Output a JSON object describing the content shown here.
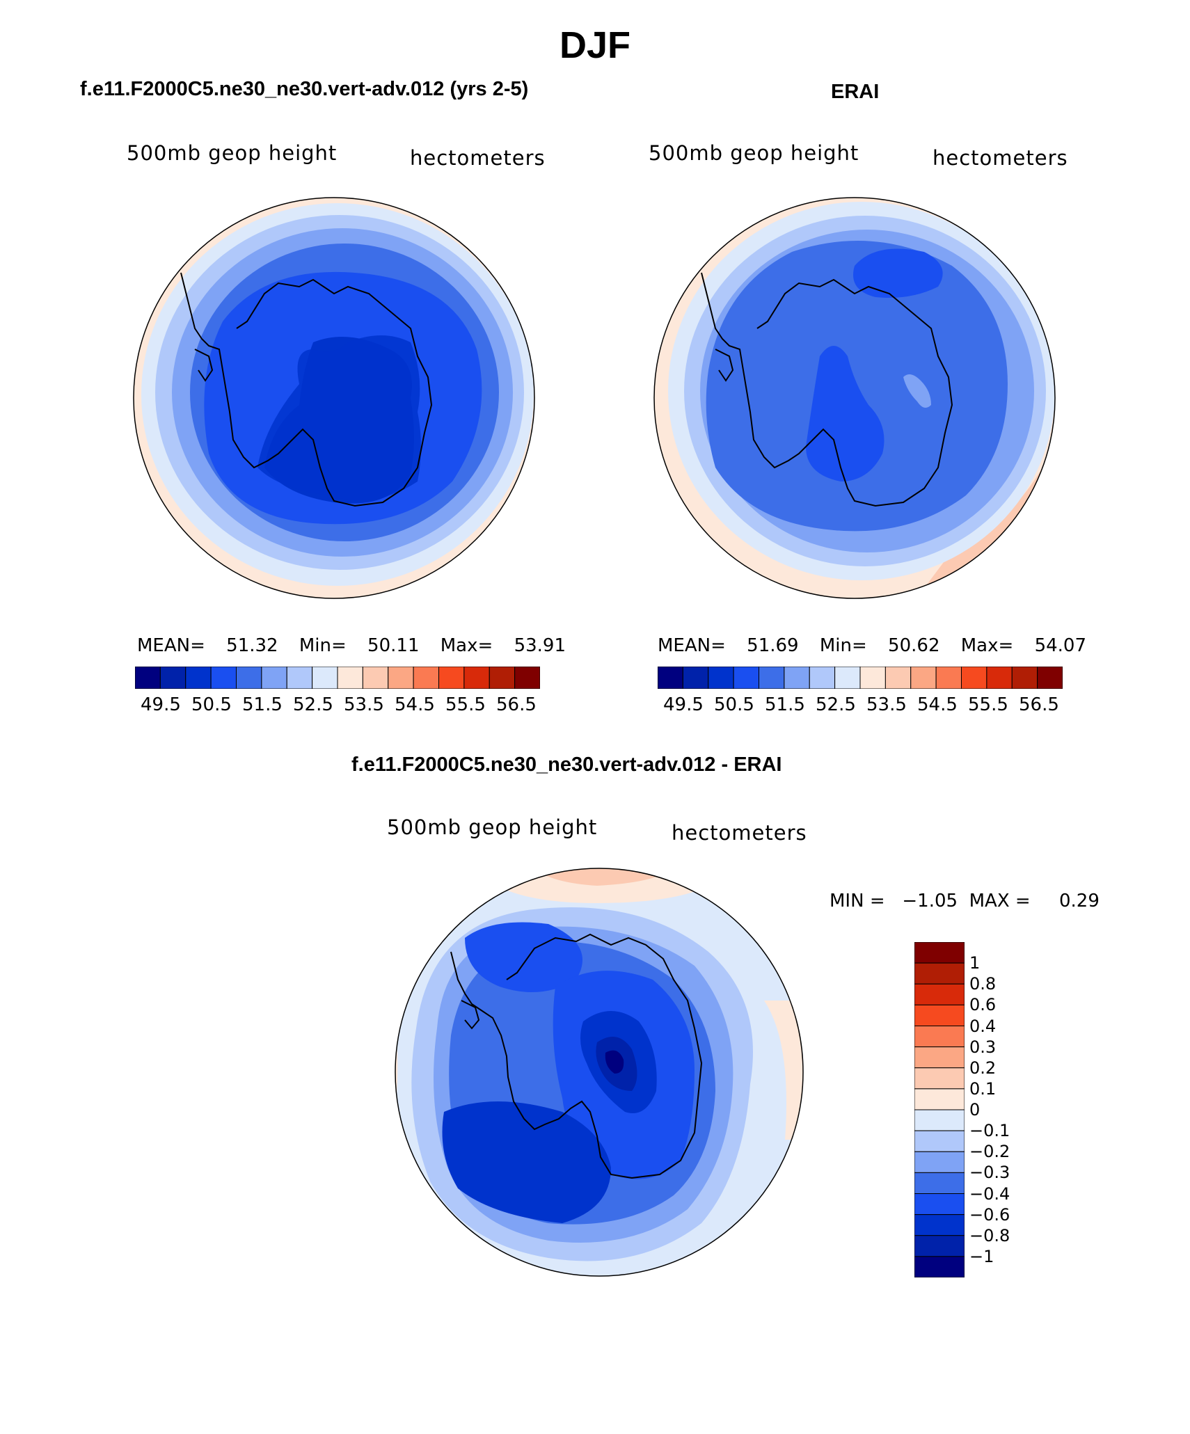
{
  "page_title": "DJF",
  "colors": {
    "abs_scale": [
      "#00007f",
      "#0022aa",
      "#0033cc",
      "#1a4ff0",
      "#3d6ee8",
      "#7fa3f5",
      "#b0c8fa",
      "#dce9fb",
      "#fde8da",
      "#fccab2",
      "#fba784",
      "#fa7a52",
      "#f64a1f",
      "#d82a0a",
      "#b01e05",
      "#7f0000"
    ],
    "diff_scale": [
      "#00007f",
      "#0022aa",
      "#0033cc",
      "#1a4ff0",
      "#3d6ee8",
      "#7fa3f5",
      "#b0c8fa",
      "#dce9fb",
      "#fde8da",
      "#fccab2",
      "#fba784",
      "#fa7a52",
      "#f64a1f",
      "#d82a0a",
      "#b01e05",
      "#7f0000"
    ]
  },
  "panels": [
    {
      "title": "f.e11.F2000C5.ne30_ne30.vert-adv.012 (yrs 2-5)",
      "left_label": "500mb  geop  height",
      "right_label": "hectometers",
      "stats": {
        "mean_label": "MEAN=",
        "mean": "51.32",
        "min_label": "Min=",
        "min": "50.11",
        "max_label": "Max=",
        "max": "53.91"
      },
      "colorbar_ticks": [
        "49.5",
        "50.5",
        "51.5",
        "52.5",
        "53.5",
        "54.5",
        "55.5",
        "56.5"
      ]
    },
    {
      "title": "ERAI",
      "left_label": "500mb  geop  height",
      "right_label": "hectometers",
      "stats": {
        "mean_label": "MEAN=",
        "mean": "51.69",
        "min_label": "Min=",
        "min": "50.62",
        "max_label": "Max=",
        "max": "54.07"
      },
      "colorbar_ticks": [
        "49.5",
        "50.5",
        "51.5",
        "52.5",
        "53.5",
        "54.5",
        "55.5",
        "56.5"
      ]
    }
  ],
  "diff_panel": {
    "title": "f.e11.F2000C5.ne30_ne30.vert-adv.012 - ERAI",
    "left_label": "500mb  geop  height",
    "right_label": "hectometers",
    "minmax": "MIN =   −1.05  MAX =     0.29",
    "colorbar_ticks": [
      "1",
      "0.8",
      "0.6",
      "0.4",
      "0.3",
      "0.2",
      "0.1",
      "0",
      "−0.1",
      "−0.2",
      "−0.3",
      "−0.4",
      "−0.6",
      "−0.8",
      "−1"
    ]
  }
}
